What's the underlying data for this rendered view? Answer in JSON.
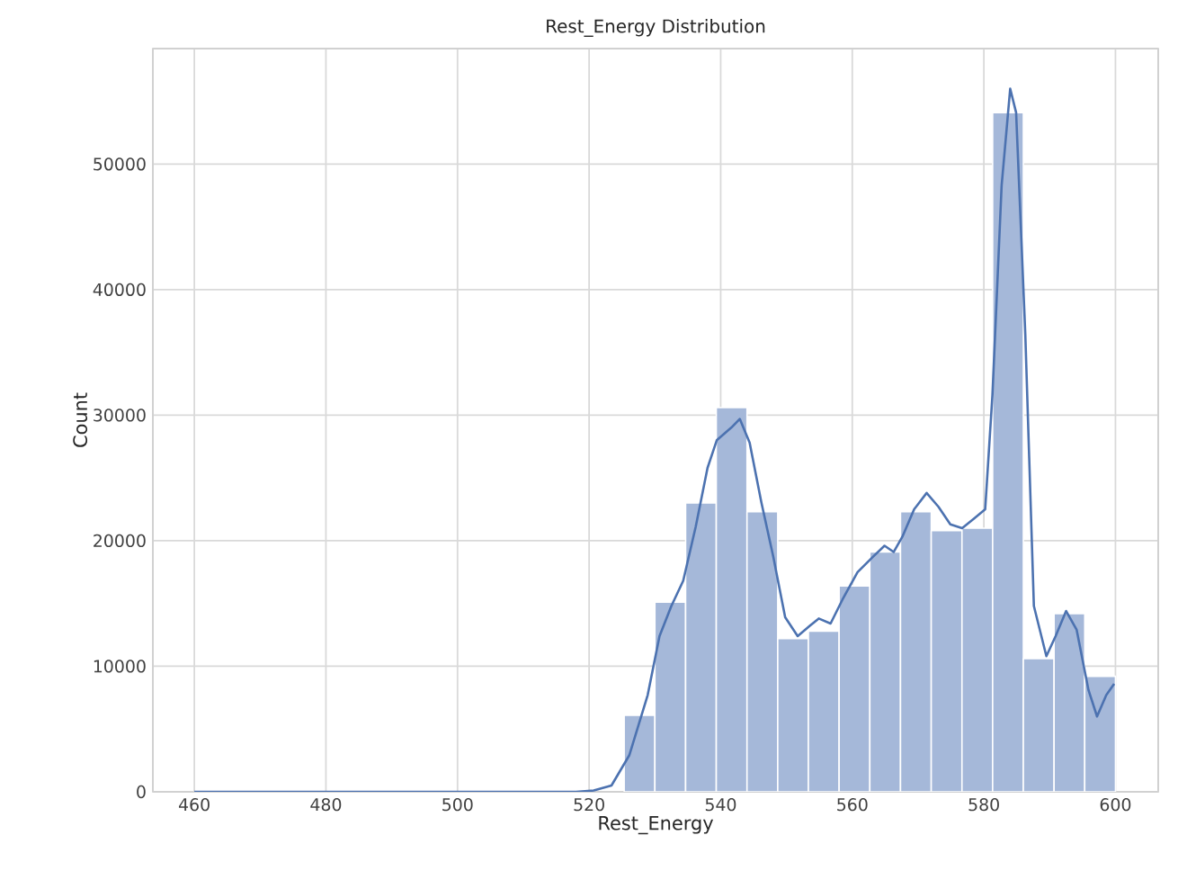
{
  "chart_data": {
    "type": "histogram",
    "title": "Rest_Energy Distribution",
    "xlabel": "Rest_Energy",
    "ylabel": "Count",
    "xlim": [
      453.7,
      606.5
    ],
    "ylim": [
      0,
      59200
    ],
    "xticks": [
      460,
      480,
      500,
      520,
      540,
      560,
      580,
      600
    ],
    "yticks": [
      0,
      10000,
      20000,
      30000,
      40000,
      50000
    ],
    "grid": true,
    "series": [
      {
        "color": "#a5b8d9",
        "bins": [
          525.33,
          530,
          534.67,
          539.33,
          544,
          548.67,
          553.33,
          558,
          562.67,
          567.33,
          572,
          576.67,
          581.33,
          586,
          590.67,
          595.33,
          600
        ],
        "values": [
          6100,
          15100,
          23000,
          30600,
          22300,
          12200,
          12800,
          16400,
          19100,
          22300,
          20800,
          21000,
          54100,
          10600,
          14200,
          9200
        ]
      },
      {
        "type": "line",
        "color": "#4c72b0",
        "x": [
          460,
          518,
          520.7,
          523.4,
          526.1,
          528.9,
          530.7,
          532.5,
          534.3,
          536.2,
          538,
          539.4,
          541.6,
          542.9,
          544.4,
          546.2,
          548,
          549.8,
          551.7,
          553.5,
          554.9,
          556.7,
          558.5,
          560.8,
          563.1,
          564.9,
          566.3,
          567.6,
          569.4,
          571.3,
          573.1,
          574.9,
          576.7,
          578.6,
          580.2,
          581.3,
          582.7,
          584,
          584.9,
          586.3,
          587.6,
          589.5,
          590.9,
          592.5,
          594.1,
          595.9,
          597.2,
          598.6,
          599.8
        ],
        "values": [
          0,
          0,
          100,
          500,
          2900,
          7700,
          12400,
          14800,
          16800,
          21100,
          25800,
          28000,
          29000,
          29700,
          27800,
          23000,
          18700,
          13900,
          12400,
          13200,
          13800,
          13400,
          15300,
          17500,
          18700,
          19600,
          19100,
          20300,
          22500,
          23800,
          22700,
          21300,
          21000,
          21800,
          22500,
          31600,
          48300,
          56000,
          54100,
          36400,
          14800,
          10800,
          12400,
          14400,
          12900,
          8100,
          6000,
          7700,
          8600
        ]
      }
    ]
  }
}
